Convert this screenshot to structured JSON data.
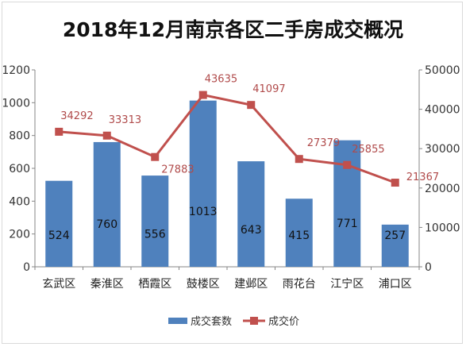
{
  "chart_data": {
    "type": "bar",
    "title": "2018年12月南京各区二手房成交概况",
    "categories": [
      "玄武区",
      "秦淮区",
      "栖霞区",
      "鼓楼区",
      "建邺区",
      "雨花台",
      "江宁区",
      "浦口区"
    ],
    "series": [
      {
        "name": "成交套数",
        "type": "bar",
        "axis": "left",
        "color": "#4f81bd",
        "values": [
          524,
          760,
          556,
          1013,
          643,
          415,
          771,
          257
        ],
        "value_labels": [
          "524",
          "760",
          "556",
          "1013",
          "643",
          "415",
          "771",
          "257"
        ]
      },
      {
        "name": "成交价",
        "type": "line",
        "axis": "right",
        "color": "#c0504d",
        "values": [
          34292,
          33313,
          27883,
          43635,
          41097,
          27379,
          25855,
          21367
        ],
        "value_labels": [
          "34292",
          "33313",
          "27883",
          "43635",
          "41097",
          "27379",
          "25855",
          "21367"
        ]
      }
    ],
    "ylim_left": [
      0,
      1200
    ],
    "yticks_left": [
      "0",
      "200",
      "400",
      "600",
      "800",
      "1000",
      "1200"
    ],
    "ylim_right": [
      0,
      50000
    ],
    "yticks_right": [
      "0",
      "10000",
      "20000",
      "30000",
      "40000",
      "50000"
    ],
    "grid": false,
    "legend": "bottom"
  }
}
